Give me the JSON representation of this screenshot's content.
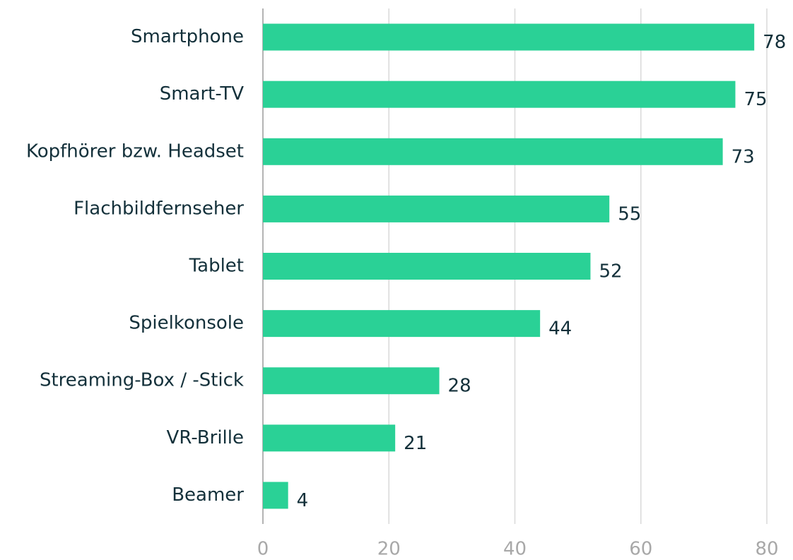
{
  "chart_data": {
    "type": "bar",
    "orientation": "horizontal",
    "categories": [
      "Smartphone",
      "Smart-TV",
      "Kopfhörer bzw. Headset",
      "Flachbildfernseher",
      "Tablet",
      "Spielkonsole",
      "Streaming-Box / -Stick",
      "VR-Brille",
      "Beamer"
    ],
    "values": [
      78,
      75,
      73,
      55,
      52,
      44,
      28,
      21,
      4
    ],
    "color": "#2ad196",
    "xlim": [
      0,
      80
    ],
    "xticks": [
      0,
      20,
      40,
      60,
      80
    ],
    "grid": true
  }
}
